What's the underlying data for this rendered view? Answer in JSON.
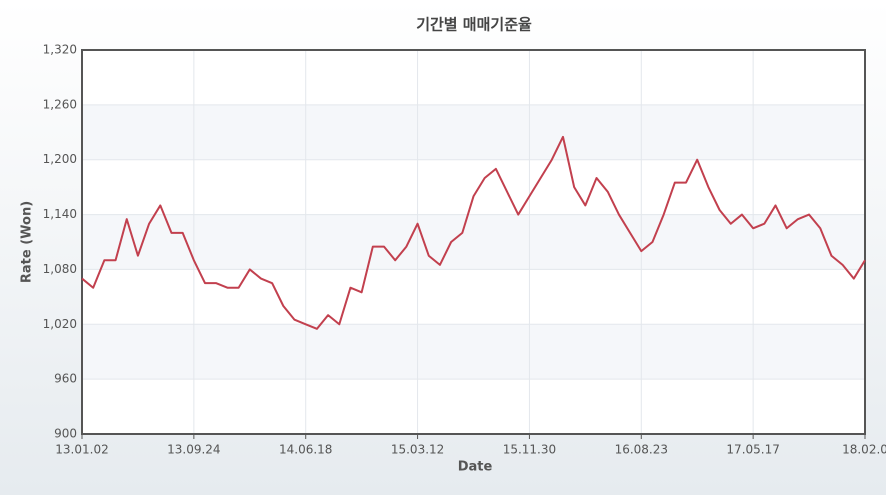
{
  "chart_data": {
    "type": "line",
    "title": "기간별 매매기준율",
    "x_label": "Date",
    "y_label": "Rate (Won)",
    "categories": [
      "13.01.02",
      null,
      null,
      null,
      null,
      null,
      null,
      null,
      null,
      null,
      "13.09.24",
      null,
      null,
      null,
      null,
      null,
      null,
      null,
      null,
      null,
      "14.06.18",
      null,
      null,
      null,
      null,
      null,
      null,
      null,
      null,
      null,
      "15.03.12",
      null,
      null,
      null,
      null,
      null,
      null,
      null,
      null,
      null,
      "15.11.30",
      null,
      null,
      null,
      null,
      null,
      null,
      null,
      null,
      null,
      "16.08.23",
      null,
      null,
      null,
      null,
      null,
      null,
      null,
      null,
      null,
      "17.05.17",
      null,
      null,
      null,
      null,
      null,
      null,
      null,
      null,
      null,
      "18.02.0"
    ],
    "series": [
      {
        "name": "Rate",
        "color": "#c2404e",
        "values": [
          1070,
          1060,
          1090,
          1090,
          1135,
          1095,
          1130,
          1150,
          1120,
          1120,
          1090,
          1065,
          1065,
          1060,
          1060,
          1080,
          1070,
          1065,
          1040,
          1025,
          1020,
          1015,
          1030,
          1020,
          1060,
          1055,
          1105,
          1105,
          1090,
          1105,
          1130,
          1095,
          1085,
          1110,
          1120,
          1160,
          1180,
          1190,
          1165,
          1140,
          1160,
          1180,
          1200,
          1225,
          1170,
          1150,
          1180,
          1165,
          1140,
          1120,
          1100,
          1110,
          1140,
          1175,
          1175,
          1200,
          1170,
          1145,
          1130,
          1140,
          1125,
          1130,
          1150,
          1125,
          1135,
          1140,
          1125,
          1095,
          1085,
          1070,
          1090
        ]
      }
    ],
    "ylim": [
      900,
      1320
    ],
    "yticks": [
      900,
      {
        "value": 960,
        "label": "960"
      },
      {
        "value": 1020,
        "label": "1,020"
      },
      {
        "value": 1080,
        "label": "1,080"
      },
      {
        "value": 1140,
        "label": "1,140"
      },
      {
        "value": 1200,
        "label": "1,200"
      },
      {
        "value": 1260,
        "label": "1,260"
      },
      {
        "value": 1320,
        "label": "1,320"
      }
    ],
    "grid": true
  }
}
